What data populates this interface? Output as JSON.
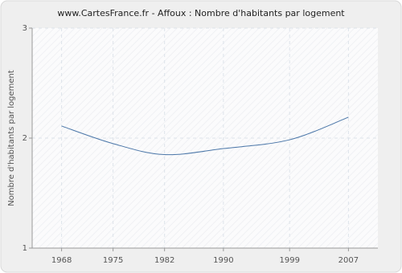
{
  "chart_data": {
    "type": "line",
    "title": "www.CartesFrance.fr - Affoux : Nombre d'habitants par logement",
    "y_label": "Nombre d'habitants par logement",
    "x": [
      1968,
      1975,
      1982,
      1990,
      1999,
      2007
    ],
    "series": [
      {
        "name": "Affoux",
        "color": "#4a76a8",
        "values": [
          2.11,
          1.95,
          1.85,
          1.905,
          1.985,
          2.19
        ]
      }
    ],
    "xlim": [
      1964,
      2011
    ],
    "xticks": [
      1968,
      1975,
      1982,
      1990,
      1999,
      2007
    ],
    "ylim": [
      1,
      3
    ],
    "yticks": [
      1,
      2,
      3
    ],
    "grid": true
  }
}
